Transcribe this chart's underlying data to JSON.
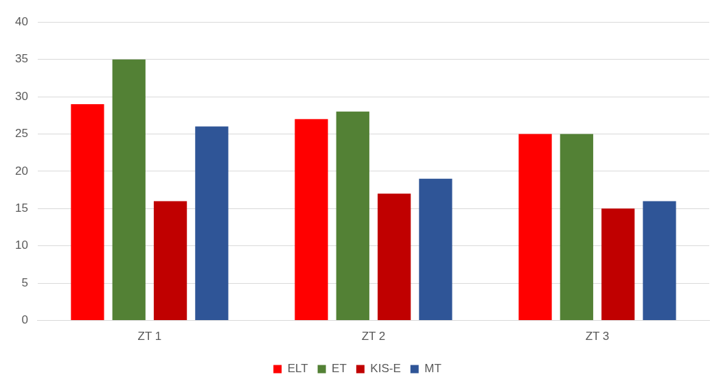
{
  "chart_data": {
    "type": "bar",
    "categories": [
      "ZT 1",
      "ZT 2",
      "ZT 3"
    ],
    "series": [
      {
        "name": "ELT",
        "color": "#ff0000",
        "values": [
          29,
          27,
          25
        ]
      },
      {
        "name": "ET",
        "color": "#538135",
        "values": [
          35,
          28,
          25
        ]
      },
      {
        "name": "KIS-E",
        "color": "#c00000",
        "values": [
          16,
          17,
          15
        ]
      },
      {
        "name": "MT",
        "color": "#2f5597",
        "values": [
          26,
          19,
          16
        ]
      }
    ],
    "ylim": [
      0,
      40
    ],
    "yticks": [
      0,
      5,
      10,
      15,
      20,
      25,
      30,
      35,
      40
    ],
    "grid": "y",
    "legend": "bottom"
  }
}
